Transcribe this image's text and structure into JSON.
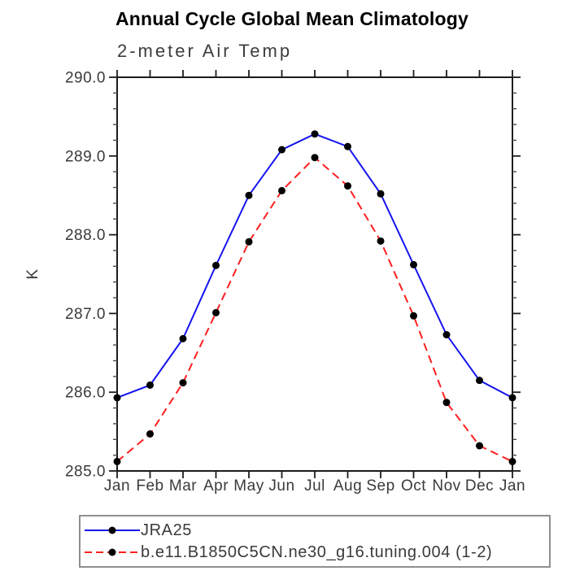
{
  "chart_data": {
    "type": "line",
    "title": "Annual Cycle Global Mean Climatology",
    "subtitle": "2-meter Air Temp",
    "xlabel": "",
    "ylabel": "K",
    "categories": [
      "Jan",
      "Feb",
      "Mar",
      "Apr",
      "May",
      "Jun",
      "Jul",
      "Aug",
      "Sep",
      "Oct",
      "Nov",
      "Dec",
      "Jan"
    ],
    "ylim": [
      285.0,
      290.0
    ],
    "ytick_interval": 1.0,
    "ytick_minor_interval": 0.2,
    "ytick_labels": [
      "285.0",
      "286.0",
      "287.0",
      "288.0",
      "289.0",
      "290.0"
    ],
    "grid": false,
    "legend_position": "bottom-left-box",
    "series": [
      {
        "name": "JRA25",
        "color": "#1414f0",
        "style": "solid",
        "marker": "filled-circle",
        "marker_color": "#000000",
        "values": [
          285.93,
          286.09,
          286.68,
          287.61,
          288.5,
          289.08,
          289.28,
          289.12,
          288.52,
          287.62,
          286.73,
          286.15,
          285.93
        ]
      },
      {
        "name": "b.e11.B1850C5CN.ne30_g16.tuning.004 (1-2)",
        "color": "#ff1f1f",
        "style": "dashed",
        "marker": "filled-circle",
        "marker_color": "#000000",
        "values": [
          285.12,
          285.47,
          286.12,
          287.01,
          287.91,
          288.56,
          288.98,
          288.62,
          287.92,
          286.97,
          285.87,
          285.32,
          285.12
        ]
      }
    ]
  },
  "colors": {
    "axis": "#1c1c1c",
    "text": "#3a3a3a",
    "legend_border": "#8f8f8f",
    "background": "#ffffff"
  }
}
